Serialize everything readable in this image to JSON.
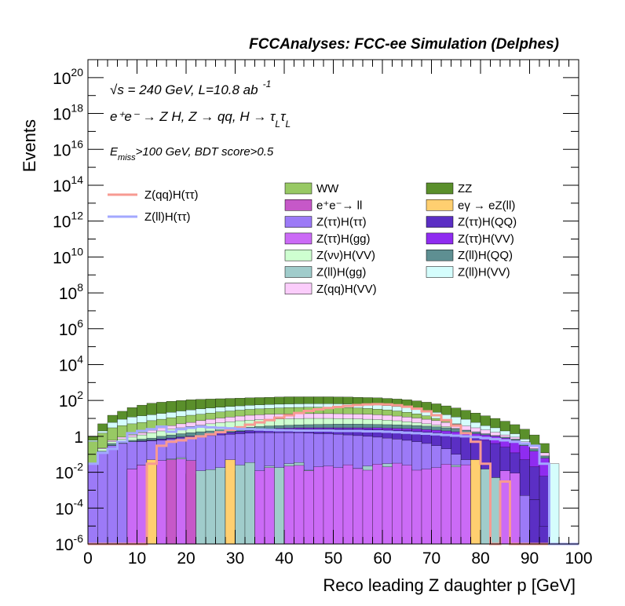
{
  "header": {
    "title": "FCCAnalyses: FCC-ee Simulation (Delphes)"
  },
  "annotations": {
    "line1": "√s = 240 GeV, L=10.8 ab",
    "line1_sup": "-1",
    "line2": "e⁺e⁻ → Z H, Z → qq, H → τ",
    "line2_sub": "L",
    "line2_tail": "τ",
    "line2_sub2": "L",
    "line3_pre": "E",
    "line3_sub": "miss",
    "line3_post": ">100 GeV, BDT score>0.5"
  },
  "colors": {
    "WW": "#98c964",
    "ZZ": "#5a8f2b",
    "ee_ll": "#c658c8",
    "egamma_eZll": "#ffcf70",
    "Ztautau_Htautau": "#9c7af7",
    "Ztautau_HQQ": "#5b2fc4",
    "Ztautau_Hgg": "#cb6bf6",
    "Ztautau_HVV": "#8f2cf0",
    "Znunu_HVV": "#ceffd0",
    "Zll_HQQ": "#5e8f92",
    "Zll_Hgg": "#a0cccb",
    "Zll_HVV": "#d5fdfc",
    "Zqq_HVV": "#fbcdfb",
    "sig_qq": "#f79a92",
    "sig_ll": "#a3a8ff"
  },
  "chart_data": {
    "type": "stacked histogram (log y) with signal overlay lines",
    "title": "FCCAnalyses: FCC-ee Simulation (Delphes)",
    "xlabel": "Reco leading Z daughter p [GeV]",
    "ylabel": "Events",
    "xlim": [
      0,
      100
    ],
    "ylim": [
      1e-06,
      1e+21
    ],
    "log_y": true,
    "bin_width": 2,
    "x_ticks": [
      "0",
      "10",
      "20",
      "30",
      "40",
      "50",
      "60",
      "70",
      "80",
      "90",
      "100"
    ],
    "y_ticks": [
      {
        "base": "10",
        "exp": "-6",
        "value": 1e-06
      },
      {
        "base": "10",
        "exp": "-4",
        "value": 0.0001
      },
      {
        "base": "10",
        "exp": "-2",
        "value": 0.01
      },
      {
        "base": "1",
        "exp": "",
        "value": 1
      },
      {
        "base": "10",
        "exp": "2",
        "value": 100
      },
      {
        "base": "10",
        "exp": "4",
        "value": 10000
      },
      {
        "base": "10",
        "exp": "6",
        "value": 1000000
      },
      {
        "base": "10",
        "exp": "8",
        "value": 100000000
      },
      {
        "base": "10",
        "exp": "10",
        "value": 10000000000
      },
      {
        "base": "10",
        "exp": "12",
        "value": 1000000000000
      },
      {
        "base": "10",
        "exp": "14",
        "value": 100000000000000
      },
      {
        "base": "10",
        "exp": "16",
        "value": 1e+16
      },
      {
        "base": "10",
        "exp": "18",
        "value": 1e+18
      },
      {
        "base": "10",
        "exp": "20",
        "value": 1e+20
      }
    ],
    "stack_layers": [
      {
        "name": "Z(ττ)H(ττ)",
        "color_key": "Ztautau_Htautau",
        "top": [
          0.03,
          0.12,
          0.3,
          0.4,
          0.5,
          0.5,
          0.55,
          0.6,
          0.7,
          0.8,
          0.9,
          1.0,
          1.1,
          1.2,
          1.3,
          1.4,
          1.5,
          1.6,
          1.6,
          1.6,
          1.6,
          1.6,
          1.5,
          1.4,
          1.4,
          1.3,
          1.2,
          1.1,
          1.0,
          0.9,
          0.8,
          0.7,
          0.6,
          0.5,
          0.4,
          0.3,
          0.2,
          0.1,
          0.05,
          0.03,
          0.01,
          0.005,
          0.003,
          0.001,
          0.0005,
          0.0003,
          0.0,
          0.0,
          0.0,
          0.0
        ]
      },
      {
        "name": "Z(ττ)H(QQ)",
        "color_key": "Ztautau_HQQ",
        "top": [
          0.03,
          0.12,
          0.3,
          0.4,
          0.5,
          0.55,
          0.6,
          0.7,
          0.8,
          0.9,
          1.0,
          1.1,
          1.3,
          1.5,
          1.7,
          1.9,
          2.1,
          2.3,
          2.4,
          2.5,
          2.6,
          2.6,
          2.6,
          2.6,
          2.6,
          2.6,
          2.6,
          2.5,
          2.5,
          2.4,
          2.3,
          2.2,
          2.1,
          2.0,
          1.8,
          1.6,
          1.4,
          1.2,
          1.0,
          0.8,
          0.6,
          0.4,
          0.25,
          0.12,
          0.05,
          0.02,
          0.006,
          0.0,
          0.0,
          0.0
        ]
      },
      {
        "name": "Z(ττ)H(VV)",
        "color_key": "Ztautau_HVV",
        "top": [
          0.03,
          0.12,
          0.3,
          0.4,
          0.5,
          0.55,
          0.6,
          0.7,
          0.8,
          0.9,
          1.0,
          1.1,
          1.3,
          1.5,
          1.7,
          1.9,
          2.1,
          2.4,
          2.6,
          2.8,
          2.9,
          3.0,
          3.0,
          3.0,
          3.0,
          3.0,
          3.0,
          3.0,
          3.0,
          3.0,
          2.9,
          2.8,
          2.7,
          2.6,
          2.4,
          2.2,
          2.0,
          1.8,
          1.6,
          1.4,
          1.2,
          1.0,
          0.8,
          0.6,
          0.3,
          0.15,
          0.06,
          0.0,
          0.0,
          0.0
        ]
      },
      {
        "name": "Z(ll)H(QQ)",
        "color_key": "Zll_HQQ",
        "top": [
          0.03,
          0.15,
          0.4,
          0.5,
          0.6,
          0.7,
          0.8,
          1.0,
          1.2,
          1.4,
          1.6,
          1.8,
          2.0,
          2.3,
          2.6,
          2.9,
          3.2,
          3.5,
          3.8,
          4.0,
          4.2,
          4.4,
          4.5,
          4.6,
          4.7,
          4.8,
          4.8,
          4.8,
          4.7,
          4.6,
          4.5,
          4.4,
          4.2,
          4.0,
          3.7,
          3.4,
          3.0,
          2.6,
          2.2,
          1.8,
          1.4,
          1.1,
          0.9,
          0.7,
          0.4,
          0.2,
          0.08,
          0.0,
          0.0,
          0.0
        ]
      },
      {
        "name": "Z(νν)H(VV)",
        "color_key": "Znunu_HVV",
        "top": [
          0.03,
          0.2,
          0.5,
          0.7,
          0.9,
          1.2,
          1.6,
          2.0,
          2.5,
          3.0,
          3.6,
          4.2,
          5.0,
          5.8,
          6.6,
          7.4,
          8.0,
          8.6,
          9.0,
          9.3,
          9.6,
          9.8,
          10.0,
          10.0,
          10.0,
          9.9,
          9.7,
          9.4,
          9.0,
          8.6,
          8.0,
          7.4,
          6.6,
          5.8,
          5.0,
          4.2,
          3.5,
          2.8,
          2.2,
          1.7,
          1.3,
          1.0,
          0.8,
          0.6,
          0.35,
          0.2,
          0.08,
          0.0,
          0.0,
          0.0
        ]
      },
      {
        "name": "Z(qq)H(VV)",
        "color_key": "Zqq_HVV",
        "top": [
          0.03,
          0.22,
          0.6,
          0.9,
          1.2,
          1.6,
          2.2,
          3.0,
          4.0,
          5.0,
          6.0,
          7.5,
          9.0,
          10.5,
          12.0,
          13.5,
          15.0,
          16.0,
          17.0,
          17.5,
          18.0,
          18.3,
          18.5,
          18.5,
          18.5,
          18.3,
          18.0,
          17.5,
          17.0,
          16.0,
          15.0,
          13.5,
          12.0,
          10.5,
          9.0,
          7.5,
          6.0,
          4.8,
          3.8,
          3.0,
          2.3,
          1.7,
          1.2,
          0.9,
          0.5,
          0.3,
          0.12,
          0.0,
          0.0,
          0.0
        ]
      },
      {
        "name": "WW",
        "color_key": "WW",
        "top": [
          0.5,
          1.5,
          3.0,
          4.0,
          5.0,
          6.0,
          7.5,
          9.0,
          11.0,
          13.0,
          15.0,
          17.0,
          20.0,
          23.0,
          26.0,
          29.0,
          32.0,
          34.0,
          36.0,
          38.0,
          40.0,
          41.0,
          42.0,
          42.0,
          42.0,
          41.0,
          40.0,
          38.0,
          36.0,
          33.0,
          30.0,
          26.0,
          22.0,
          18.0,
          14.0,
          10.0,
          7.0,
          5.0,
          3.5,
          2.5,
          1.8,
          1.3,
          0.9,
          0.6,
          0.35,
          0.2,
          0.08,
          0.0,
          0.0,
          0.0
        ]
      },
      {
        "name": "Z(ll)H(VV)",
        "color_key": "Zll_HVV",
        "top": [
          0.6,
          2.0,
          6.0,
          9.0,
          12.0,
          14.0,
          16.0,
          19.0,
          22.0,
          26.0,
          30.0,
          34.0,
          38.0,
          42.0,
          46.0,
          50.0,
          54.0,
          57.0,
          60.0,
          62.0,
          64.0,
          65.0,
          66.0,
          66.0,
          66.0,
          65.0,
          64.0,
          62.0,
          60.0,
          56.0,
          52.0,
          46.0,
          40.0,
          34.0,
          28.0,
          22.0,
          16.0,
          12.0,
          9.0,
          6.0,
          4.0,
          3.0,
          2.0,
          1.4,
          0.7,
          0.3,
          0.12,
          0.0,
          0.0,
          0.0
        ]
      },
      {
        "name": "ZZ",
        "color_key": "ZZ",
        "top": [
          1.0,
          5.0,
          15.0,
          25.0,
          40.0,
          55.0,
          70.0,
          80.0,
          90.0,
          100.0,
          110.0,
          115.0,
          120.0,
          125.0,
          130.0,
          135.0,
          140.0,
          145.0,
          150.0,
          155.0,
          160.0,
          160.0,
          160.0,
          160.0,
          160.0,
          158.0,
          155.0,
          150.0,
          145.0,
          140.0,
          130.0,
          120.0,
          110.0,
          95.0,
          80.0,
          65.0,
          50.0,
          38.0,
          28.0,
          20.0,
          14.0,
          10.0,
          7.0,
          4.5,
          2.5,
          1.2,
          0.4,
          0.0,
          0.0,
          0.0
        ]
      }
    ],
    "overlays": [
      {
        "name": "Z(ll)H(gg)",
        "color_key": "Zll_Hgg",
        "bins": [
          [
            8,
            0.015
          ],
          [
            10,
            0.025
          ],
          [
            12,
            0.035
          ],
          [
            14,
            0.045
          ],
          [
            16,
            0.055
          ],
          [
            18,
            0.065
          ],
          [
            20,
            0.008
          ],
          [
            22,
            0.012
          ],
          [
            24,
            0.014
          ],
          [
            26,
            0.018
          ],
          [
            30,
            0.025
          ],
          [
            32,
            0.035
          ],
          [
            34,
            0.01
          ],
          [
            36,
            0.022
          ],
          [
            38,
            0.018
          ],
          [
            40,
            0.03
          ],
          [
            42,
            0.035
          ],
          [
            44,
            0.013
          ],
          [
            48,
            0.011
          ],
          [
            50,
            0.01
          ],
          [
            52,
            0.012
          ],
          [
            54,
            0.016
          ],
          [
            56,
            0.022
          ],
          [
            60,
            0.03
          ],
          [
            64,
            0.018
          ],
          [
            66,
            0.01
          ],
          [
            70,
            0.008
          ],
          [
            72,
            0.012
          ],
          [
            74,
            0.025
          ],
          [
            76,
            0.011
          ],
          [
            80,
            0.015
          ],
          [
            82,
            0.005
          ]
        ]
      },
      {
        "name": "Z(ττ)H(gg)",
        "color_key": "Ztautau_Hgg",
        "bins": [
          [
            8,
            0.015
          ],
          [
            10,
            0.025
          ],
          [
            12,
            0.035
          ],
          [
            14,
            0.045
          ],
          [
            18,
            0.055
          ],
          [
            20,
            0.008
          ],
          [
            28,
            0.012
          ],
          [
            34,
            0.012
          ],
          [
            36,
            0.018
          ],
          [
            40,
            0.022
          ],
          [
            42,
            0.024
          ],
          [
            44,
            0.012
          ],
          [
            46,
            0.02
          ],
          [
            48,
            0.022
          ],
          [
            50,
            0.018
          ],
          [
            52,
            0.026
          ],
          [
            54,
            0.016
          ],
          [
            56,
            0.013
          ],
          [
            58,
            0.028
          ],
          [
            60,
            0.02
          ],
          [
            62,
            0.032
          ],
          [
            64,
            0.025
          ],
          [
            66,
            0.013
          ],
          [
            68,
            0.015
          ],
          [
            70,
            0.018
          ],
          [
            72,
            0.028
          ],
          [
            74,
            0.02
          ],
          [
            76,
            0.026
          ],
          [
            78,
            0.016
          ],
          [
            84,
            0.012
          ],
          [
            86,
            0.009
          ]
        ]
      },
      {
        "name": "e⁺e⁻→ ll",
        "color_key": "ee_ll",
        "bins": [
          [
            16,
            0.05
          ],
          [
            20,
            0.045
          ]
        ]
      },
      {
        "name": "eγ → eZ(ll)",
        "color_key": "egamma_eZll",
        "bins": [
          [
            12,
            0.05
          ],
          [
            28,
            0.05
          ],
          [
            78,
            0.05
          ]
        ]
      },
      {
        "name": "Z(ll)H(VV)",
        "color_key": "Zll_HVV",
        "bins": [
          [
            94,
            0.03
          ]
        ]
      },
      {
        "name": "Z(ττ)H(QQ)",
        "color_key": "Ztautau_HQQ",
        "bins": [
          [
            90,
            0.0003
          ],
          [
            92,
            1e-05
          ]
        ]
      }
    ],
    "signals": [
      {
        "name": "Z(qq)H(ττ)",
        "color_key": "sig_qq",
        "values": [
          0.0,
          0.0,
          0.0,
          0.0,
          0.0,
          0.0,
          0.03,
          0.3,
          0.5,
          0.6,
          0.8,
          1.0,
          1.3,
          1.7,
          2.3,
          3.2,
          4.5,
          6.0,
          8.0,
          11.0,
          15.0,
          20.0,
          26.0,
          32.0,
          38.0,
          44.0,
          50.0,
          56.0,
          60.0,
          62.0,
          60.0,
          54.0,
          45.0,
          35.0,
          25.0,
          15.0,
          8.0,
          4.0,
          1.5,
          0.5,
          0.03,
          0.0,
          0.003,
          0.0,
          0.0,
          0.0,
          0.0,
          0.0,
          0.0,
          0.0
        ]
      },
      {
        "name": "Z(ll)H(ττ)",
        "color_key": "sig_ll",
        "values": [
          0.03,
          0.12,
          0.2,
          0.5,
          1.5,
          2.0,
          2.5,
          3.5,
          1.8,
          2.5,
          3.0,
          3.5,
          3.2,
          3.0,
          2.8,
          2.6,
          2.5,
          2.4,
          2.3,
          2.2,
          2.2,
          2.1,
          2.1,
          2.1,
          2.1,
          2.0,
          2.0,
          2.0,
          1.9,
          1.9,
          1.8,
          1.7,
          1.6,
          1.5,
          1.4,
          1.3,
          1.2,
          1.1,
          1.0,
          0.9,
          0.8,
          0.7,
          0.6,
          0.5,
          0.4,
          0.3,
          0.03,
          0.0,
          0.0,
          0.0
        ]
      }
    ],
    "legend": {
      "lines": [
        {
          "label": "Z(qq)H(ττ)",
          "color_key": "sig_qq"
        },
        {
          "label": "Z(ll)H(ττ)",
          "color_key": "sig_ll"
        }
      ],
      "boxes_col1": [
        {
          "label": "WW",
          "color_key": "WW"
        },
        {
          "label": "e⁺e⁻→ ll",
          "color_key": "ee_ll"
        },
        {
          "label": "Z(ττ)H(ττ)",
          "color_key": "Ztautau_Htautau"
        },
        {
          "label": "Z(ττ)H(gg)",
          "color_key": "Ztautau_Hgg"
        },
        {
          "label": "Z(νν)H(VV)",
          "color_key": "Znunu_HVV"
        },
        {
          "label": "Z(ll)H(gg)",
          "color_key": "Zll_Hgg"
        },
        {
          "label": "Z(qq)H(VV)",
          "color_key": "Zqq_HVV"
        }
      ],
      "boxes_col2": [
        {
          "label": "ZZ",
          "color_key": "ZZ"
        },
        {
          "label": "eγ → eZ(ll)",
          "color_key": "egamma_eZll"
        },
        {
          "label": "Z(ττ)H(QQ)",
          "color_key": "Ztautau_HQQ"
        },
        {
          "label": "Z(ττ)H(VV)",
          "color_key": "Ztautau_HVV"
        },
        {
          "label": "Z(ll)H(QQ)",
          "color_key": "Zll_HQQ"
        },
        {
          "label": "Z(ll)H(VV)",
          "color_key": "Zll_HVV"
        }
      ]
    }
  }
}
